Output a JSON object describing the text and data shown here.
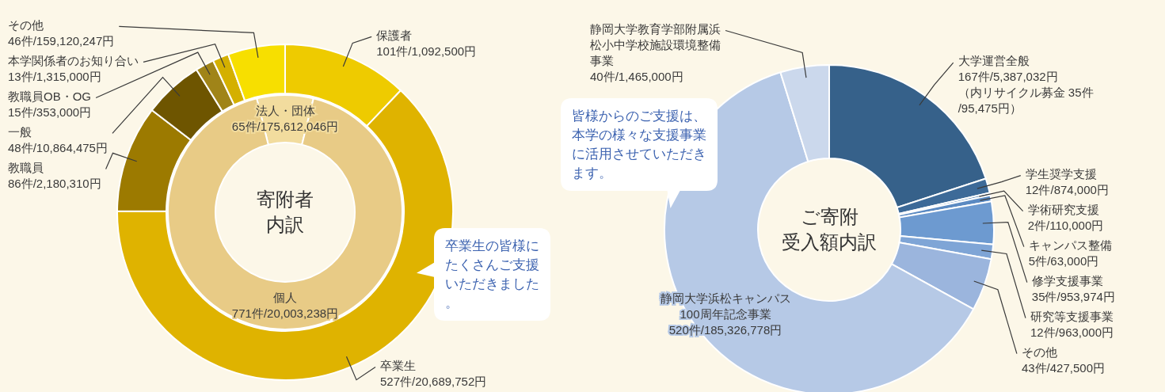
{
  "chart_data": [
    {
      "type": "donut",
      "categories": [
        "保護者",
        "卒業生",
        "教職員",
        "一般",
        "教職員OB・OG",
        "本学関係者のお知り合い",
        "その他"
      ],
      "values": [
        101,
        527,
        86,
        48,
        15,
        13,
        46
      ],
      "colors": [
        "#eecb00",
        "#dfb300",
        "#9c7a00",
        "#6e5500",
        "#a08418",
        "#d4b000",
        "#f7df00"
      ],
      "value_labels": [
        "101件/1,092,500円",
        "527件/20,689,752円",
        "86件/2,180,310円",
        "48件/10,864,475円",
        "15件/353,000円",
        "13件/1,315,000円",
        "46件/159,120,247円"
      ],
      "annotations": [
        "卒業生の皆様にたくさんご支援いただきました。"
      ]
    },
    {
      "type": "donut",
      "title": "寄附者内訳",
      "categories": [
        "法人・団体",
        "個人"
      ],
      "values": [
        65,
        771
      ],
      "colors": [
        "#f2dc9e",
        "#e8cb86"
      ],
      "value_labels": [
        "65件/175,612,046円",
        "771件/20,003,238円"
      ]
    },
    {
      "type": "donut",
      "title": "ご寄附受入額内訳",
      "categories": [
        "大学運営全般",
        "学生奨学支援",
        "学術研究支援",
        "キャンパス整備",
        "修学支援事業",
        "研究等支援事業",
        "その他",
        "静岡大学浜松キャンパス100周年記念事業",
        "静岡大学教育学部附属浜松小中学校施設環境整備事業"
      ],
      "values": [
        167,
        12,
        2,
        5,
        35,
        12,
        43,
        520,
        40
      ],
      "colors": [
        "#36618a",
        "#3d6a98",
        "#4f7db0",
        "#5b8ac2",
        "#6d9ad0",
        "#7fa5d6",
        "#9bb5dd",
        "#b6c9e6",
        "#cbd8ec"
      ],
      "value_labels": [
        "167件/5,387,032円（内リサイクル募金 35件/95,475円）",
        "12件/874,000円",
        "2件/110,000円",
        "5件/63,000円",
        "35件/953,974円",
        "12件/963,000円",
        "43件/427,500円",
        "520件/185,326,778円",
        "40件/1,465,000円"
      ],
      "annotations": [
        "皆様からのご支援は、本学の様々な支援事業に活用させていただきます。"
      ]
    }
  ]
}
